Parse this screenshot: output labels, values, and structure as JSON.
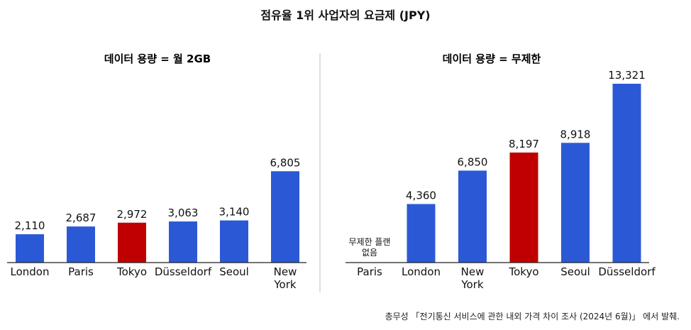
{
  "title": "점유율 1위 사업자의 요금제 (JPY)",
  "footer": "총무성 「전기통신 서비스에 관한 내외 가격 차이 조사 (2024년 6월)」 에서 발췌.",
  "colors": {
    "bar": "#2B59D6",
    "highlight": "#C00000"
  },
  "chart_data": [
    {
      "type": "bar",
      "title": "데이터 용량 = 월 2GB",
      "categories": [
        "London",
        "Paris",
        "Tokyo",
        "Düsseldorf",
        "Seoul",
        "New York"
      ],
      "category_lines": [
        [
          "London"
        ],
        [
          "Paris"
        ],
        [
          "Tokyo"
        ],
        [
          "Düsseldorf"
        ],
        [
          "Seoul"
        ],
        [
          "New",
          "York"
        ]
      ],
      "values": [
        2110,
        2687,
        2972,
        3063,
        3140,
        6805
      ],
      "value_labels": [
        "2,110",
        "2,687",
        "2,972",
        "3,063",
        "3,140",
        "6,805"
      ],
      "highlight": "Tokyo",
      "ylim": [
        0,
        13800
      ]
    },
    {
      "type": "bar",
      "title": "데이터 용량 = 무제한",
      "categories": [
        "Paris",
        "London",
        "New York",
        "Tokyo",
        "Seoul",
        "Düsseldorf"
      ],
      "category_lines": [
        [
          "Paris"
        ],
        [
          "London"
        ],
        [
          "New",
          "York"
        ],
        [
          "Tokyo"
        ],
        [
          "Seoul"
        ],
        [
          "Düsseldorf"
        ]
      ],
      "values": [
        null,
        4360,
        6850,
        8197,
        8918,
        13321
      ],
      "value_labels": [
        "",
        "4,360",
        "6,850",
        "8,197",
        "8,918",
        "13,321"
      ],
      "notes": [
        [
          "무제한 플랜",
          "없음"
        ],
        null,
        null,
        null,
        null,
        null
      ],
      "highlight": "Tokyo",
      "ylim": [
        0,
        13800
      ]
    }
  ]
}
